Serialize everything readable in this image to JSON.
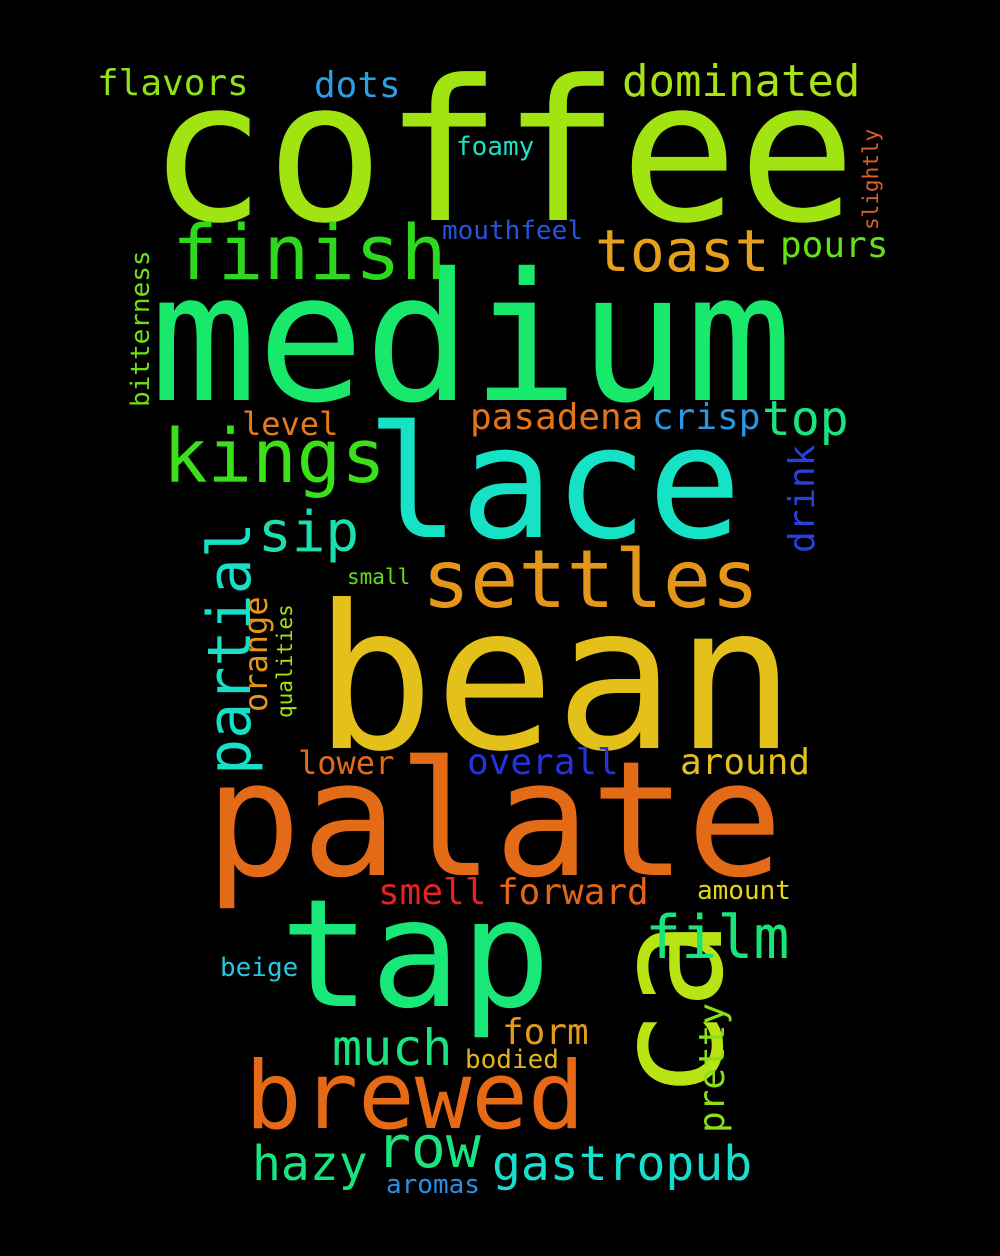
{
  "words": [
    {
      "text": "coffee",
      "color": "#a2e312"
    },
    {
      "text": "medium",
      "color": "#19e96b"
    },
    {
      "text": "lace",
      "color": "#16e3c6"
    },
    {
      "text": "bean",
      "color": "#e4c01a"
    },
    {
      "text": "palate",
      "color": "#e36a16"
    },
    {
      "text": "tap",
      "color": "#19e878"
    },
    {
      "text": "ca",
      "color": "#b8e414"
    },
    {
      "text": "brewed",
      "color": "#e66a16"
    },
    {
      "text": "settles",
      "color": "#e3961a"
    },
    {
      "text": "finish",
      "color": "#2ed81d"
    },
    {
      "text": "kings",
      "color": "#3ae018"
    },
    {
      "text": "partial",
      "color": "#16e1c8"
    },
    {
      "text": "toast",
      "color": "#e5a11b"
    },
    {
      "text": "film",
      "color": "#19e47a"
    },
    {
      "text": "row",
      "color": "#1be47e"
    },
    {
      "text": "gastropub",
      "color": "#18dfcd"
    },
    {
      "text": "sip",
      "color": "#1ae0b0"
    },
    {
      "text": "much",
      "color": "#19e482"
    },
    {
      "text": "hazy",
      "color": "#19e47f"
    },
    {
      "text": "dominated",
      "color": "#a8e214"
    },
    {
      "text": "top",
      "color": "#19e480"
    },
    {
      "text": "pasadena",
      "color": "#e37418"
    },
    {
      "text": "crisp",
      "color": "#2a97e3"
    },
    {
      "text": "pours",
      "color": "#64e117"
    },
    {
      "text": "flavors",
      "color": "#8ee114"
    },
    {
      "text": "dots",
      "color": "#2a9fe3"
    },
    {
      "text": "overall",
      "color": "#2433e0"
    },
    {
      "text": "around",
      "color": "#e5c01c"
    },
    {
      "text": "smell",
      "color": "#e22320"
    },
    {
      "text": "forward",
      "color": "#e36618"
    },
    {
      "text": "drink",
      "color": "#2542e0"
    },
    {
      "text": "pretty",
      "color": "#8ae014"
    },
    {
      "text": "form",
      "color": "#e49a19"
    },
    {
      "text": "lower",
      "color": "#e36a1b"
    },
    {
      "text": "level",
      "color": "#e57a1b"
    },
    {
      "text": "orange",
      "color": "#e4961a"
    },
    {
      "text": "foamy",
      "color": "#1ee1c4"
    },
    {
      "text": "mouthfeel",
      "color": "#2554e0"
    },
    {
      "text": "bitterness",
      "color": "#6ee116"
    },
    {
      "text": "bodied",
      "color": "#e5b41c"
    },
    {
      "text": "amount",
      "color": "#e4d51c"
    },
    {
      "text": "beige",
      "color": "#24c8e0"
    },
    {
      "text": "aromas",
      "color": "#2a8fe3"
    },
    {
      "text": "small",
      "color": "#61e016"
    },
    {
      "text": "qualities",
      "color": "#a8e114"
    },
    {
      "text": "slightly",
      "color": "#e05f2a"
    }
  ]
}
